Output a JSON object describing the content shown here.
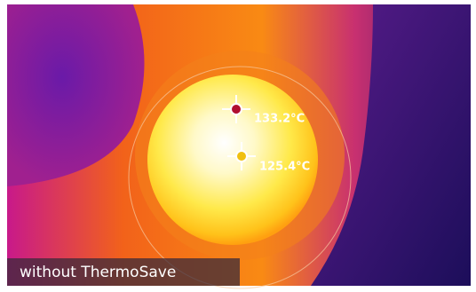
{
  "measurements": [
    {
      "label": "133.2°C"
    },
    {
      "label": "125.4°C"
    }
  ],
  "caption": "without ThermoSave"
}
